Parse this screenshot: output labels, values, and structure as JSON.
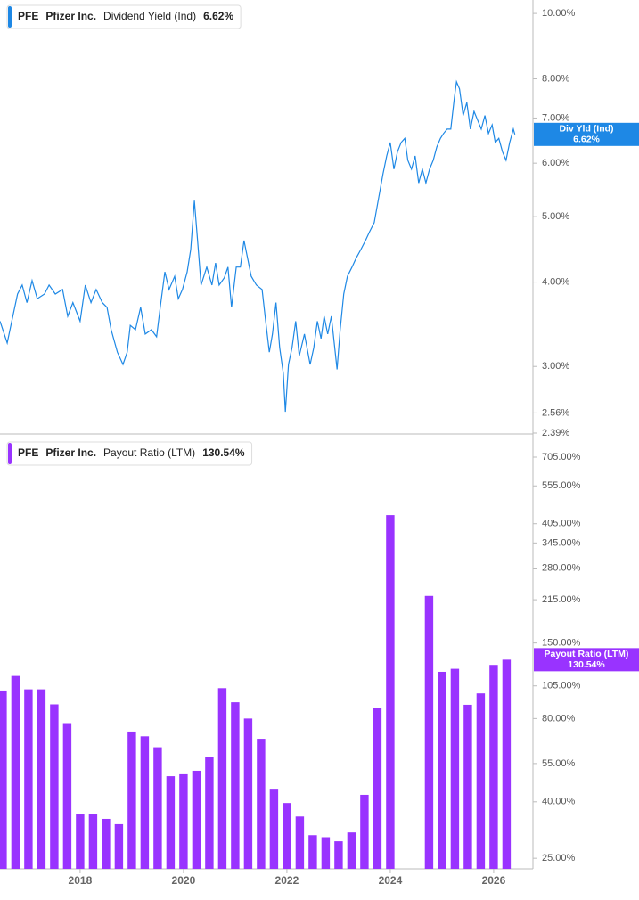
{
  "chart_data": [
    {
      "type": "line",
      "ticker": "PFE",
      "company": "Pfizer Inc.",
      "log": true,
      "grid": false,
      "xlim": [
        2016.45,
        2026.76
      ],
      "ylim": [
        2.39,
        10.47
      ],
      "yticks": [
        {
          "value": 10,
          "label": "10.00%"
        },
        {
          "value": 8,
          "label": "8.00%"
        },
        {
          "value": 7,
          "label": "7.00%"
        },
        {
          "value": 6,
          "label": "6.00%"
        },
        {
          "value": 5,
          "label": "5.00%"
        },
        {
          "value": 4,
          "label": "4.00%"
        },
        {
          "value": 3,
          "label": "3.00%"
        },
        {
          "value": 2.56,
          "label": "2.56%"
        },
        {
          "value": 2.39,
          "label": "2.39%"
        }
      ],
      "series": [
        {
          "name": "Dividend Yield (Ind)",
          "short_name": "Div Yld (Ind)",
          "color": "#1e88e5",
          "last_label": "6.62%",
          "x": [
            2016.45,
            2016.59,
            2016.66,
            2016.79,
            2016.88,
            2016.97,
            2017.07,
            2017.17,
            2017.31,
            2017.4,
            2017.52,
            2017.66,
            2017.76,
            2017.86,
            2018.0,
            2018.1,
            2018.21,
            2018.31,
            2018.43,
            2018.52,
            2018.6,
            2018.72,
            2018.83,
            2018.91,
            2018.97,
            2019.07,
            2019.17,
            2019.26,
            2019.38,
            2019.48,
            2019.55,
            2019.64,
            2019.72,
            2019.83,
            2019.9,
            2019.98,
            2020.07,
            2020.14,
            2020.21,
            2020.28,
            2020.34,
            2020.45,
            2020.55,
            2020.62,
            2020.69,
            2020.79,
            2020.86,
            2020.93,
            2021.02,
            2021.1,
            2021.17,
            2021.24,
            2021.31,
            2021.41,
            2021.52,
            2021.59,
            2021.66,
            2021.72,
            2021.79,
            2021.86,
            2021.93,
            2021.97,
            2022.03,
            2022.1,
            2022.17,
            2022.24,
            2022.34,
            2022.45,
            2022.52,
            2022.59,
            2022.66,
            2022.72,
            2022.79,
            2022.86,
            2022.97,
            2023.03,
            2023.1,
            2023.17,
            2023.26,
            2023.34,
            2023.43,
            2023.52,
            2023.6,
            2023.69,
            2023.78,
            2023.86,
            2023.93,
            2024.0,
            2024.07,
            2024.14,
            2024.21,
            2024.28,
            2024.34,
            2024.41,
            2024.48,
            2024.55,
            2024.62,
            2024.69,
            2024.76,
            2024.83,
            2024.9,
            2024.97,
            2025.03,
            2025.1,
            2025.17,
            2025.24,
            2025.28,
            2025.34,
            2025.41,
            2025.48,
            2025.55,
            2025.62,
            2025.69,
            2025.76,
            2025.83,
            2025.9,
            2025.97,
            2026.03,
            2026.1,
            2026.17,
            2026.24,
            2026.31,
            2026.38,
            2026.41
          ],
          "values": [
            3.5,
            3.25,
            3.45,
            3.84,
            3.96,
            3.73,
            4.02,
            3.78,
            3.84,
            3.96,
            3.84,
            3.9,
            3.56,
            3.73,
            3.5,
            3.96,
            3.73,
            3.9,
            3.73,
            3.67,
            3.4,
            3.15,
            3.02,
            3.15,
            3.45,
            3.4,
            3.67,
            3.35,
            3.4,
            3.32,
            3.67,
            4.14,
            3.9,
            4.08,
            3.78,
            3.9,
            4.14,
            4.47,
            5.28,
            4.54,
            3.96,
            4.21,
            3.96,
            4.27,
            3.96,
            4.06,
            4.21,
            3.67,
            4.21,
            4.21,
            4.61,
            4.34,
            4.08,
            3.96,
            3.9,
            3.5,
            3.15,
            3.35,
            3.73,
            3.2,
            2.93,
            2.57,
            3.02,
            3.2,
            3.5,
            3.11,
            3.35,
            3.02,
            3.2,
            3.5,
            3.3,
            3.56,
            3.35,
            3.56,
            2.97,
            3.4,
            3.84,
            4.08,
            4.21,
            4.34,
            4.47,
            4.61,
            4.75,
            4.9,
            5.36,
            5.79,
            6.15,
            6.44,
            5.88,
            6.24,
            6.44,
            6.53,
            6.06,
            5.88,
            6.15,
            5.61,
            5.88,
            5.61,
            5.88,
            6.06,
            6.34,
            6.53,
            6.64,
            6.74,
            6.74,
            7.5,
            7.92,
            7.73,
            7.06,
            7.38,
            6.74,
            7.16,
            6.95,
            6.74,
            7.06,
            6.64,
            6.84,
            6.44,
            6.53,
            6.24,
            6.06,
            6.44,
            6.74,
            6.62
          ]
        }
      ]
    },
    {
      "type": "bar",
      "ticker": "PFE",
      "company": "Pfizer Inc.",
      "log": true,
      "grid": false,
      "xlim": [
        2016.45,
        2026.76
      ],
      "ylim": [
        22.9,
        855
      ],
      "xticks": [
        2018,
        2020,
        2022,
        2024,
        2026
      ],
      "yticks": [
        {
          "value": 705,
          "label": "705.00%"
        },
        {
          "value": 555,
          "label": "555.00%"
        },
        {
          "value": 405,
          "label": "405.00%"
        },
        {
          "value": 345,
          "label": "345.00%"
        },
        {
          "value": 280,
          "label": "280.00%"
        },
        {
          "value": 215,
          "label": "215.00%"
        },
        {
          "value": 150,
          "label": "150.00%"
        },
        {
          "value": 105,
          "label": "105.00%"
        },
        {
          "value": 80,
          "label": "80.00%"
        },
        {
          "value": 55,
          "label": "55.00%"
        },
        {
          "value": 40,
          "label": "40.00%"
        },
        {
          "value": 25,
          "label": "25.00%"
        }
      ],
      "series": [
        {
          "name": "Payout Ratio (LTM)",
          "short_name": "Payout Ratio (LTM)",
          "color": "#9933ff",
          "last_label": "130.54%",
          "x": [
            2016.5,
            2016.75,
            2017,
            2017.25,
            2017.5,
            2017.75,
            2018,
            2018.25,
            2018.5,
            2018.75,
            2019,
            2019.25,
            2019.5,
            2019.75,
            2020,
            2020.25,
            2020.5,
            2020.75,
            2021,
            2021.25,
            2021.5,
            2021.75,
            2022,
            2022.25,
            2022.5,
            2022.75,
            2023,
            2023.25,
            2023.5,
            2023.75,
            2024,
            2024.25,
            2024.5,
            2024.75,
            2025,
            2025.25,
            2025.5,
            2025.75,
            2026,
            2026.25
          ],
          "values": [
            101,
            114,
            102,
            102,
            90,
            77,
            36,
            36,
            34.7,
            33.2,
            71.8,
            69,
            63,
            49.5,
            50.3,
            51.8,
            57.9,
            103,
            91.6,
            80,
            67.6,
            44.6,
            39.6,
            35.4,
            30.3,
            29.8,
            28.8,
            31,
            42.4,
            87.6,
            435,
            null,
            null,
            222,
            118,
            121,
            89.7,
            98.6,
            125,
            130.54
          ]
        }
      ]
    }
  ]
}
